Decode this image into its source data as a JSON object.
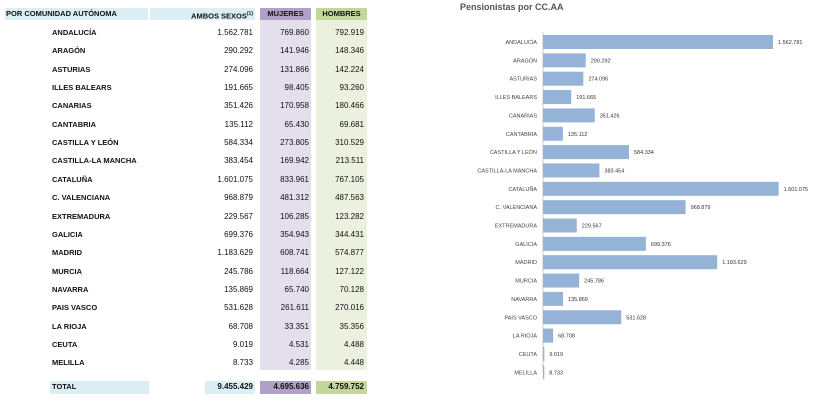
{
  "table": {
    "headers": {
      "region": "POR COMUNIDAD AUTÓNOMA",
      "both": "AMBOS SEXOS",
      "both_note": "(1)",
      "women": "MUJERES",
      "men": "HOMBRES"
    },
    "rows": [
      {
        "name": "ANDALUCÍA",
        "both": "1.562.781",
        "women": "769.860",
        "men": "792.919"
      },
      {
        "name": "ARAGÓN",
        "both": "290.292",
        "women": "141.946",
        "men": "148.346"
      },
      {
        "name": "ASTURIAS",
        "both": "274.096",
        "women": "131.866",
        "men": "142.224"
      },
      {
        "name": "ILLES BALEARS",
        "both": "191.665",
        "women": "98.405",
        "men": "93.260"
      },
      {
        "name": "CANARIAS",
        "both": "351.426",
        "women": "170.958",
        "men": "180.466"
      },
      {
        "name": "CANTABRIA",
        "both": "135.112",
        "women": "65.430",
        "men": "69.681"
      },
      {
        "name": "CASTILLA Y LEÓN",
        "both": "584.334",
        "women": "273.805",
        "men": "310.529"
      },
      {
        "name": "CASTILLA-LA MANCHA",
        "both": "383.454",
        "women": "169.942",
        "men": "213.511"
      },
      {
        "name": "CATALUÑA",
        "both": "1.601.075",
        "women": "833.961",
        "men": "767.105"
      },
      {
        "name": "C. VALENCIANA",
        "both": "968.879",
        "women": "481.312",
        "men": "487.563"
      },
      {
        "name": "EXTREMADURA",
        "both": "229.567",
        "women": "106.285",
        "men": "123.282"
      },
      {
        "name": "GALICIA",
        "both": "699.376",
        "women": "354.943",
        "men": "344.431"
      },
      {
        "name": "MADRID",
        "both": "1.183.629",
        "women": "608.741",
        "men": "574.877"
      },
      {
        "name": "MURCIA",
        "both": "245.786",
        "women": "118.664",
        "men": "127.122"
      },
      {
        "name": "NAVARRA",
        "both": "135.869",
        "women": "65.740",
        "men": "70.128"
      },
      {
        "name": "PAIS VASCO",
        "both": "531.628",
        "women": "261.611",
        "men": "270.016"
      },
      {
        "name": "LA RIOJA",
        "both": "68.708",
        "women": "33.351",
        "men": "35.356"
      },
      {
        "name": "CEUTA",
        "both": "9.019",
        "women": "4.531",
        "men": "4.488"
      },
      {
        "name": "MELILLA",
        "both": "8.733",
        "women": "4.285",
        "men": "4.448"
      }
    ],
    "total": {
      "name": "TOTAL",
      "both": "9.455.429",
      "women": "4.695.636",
      "men": "4.759.752"
    }
  },
  "colors": {
    "header_blue": "#dbeef4",
    "women": "#e4dfec",
    "women_header": "#b1a0c7",
    "men": "#ebf1de",
    "men_header": "#c4d79b",
    "bar": "#95b3d7"
  },
  "chart_data": {
    "type": "bar",
    "orientation": "horizontal",
    "title": "Pensionistas por CC.AA",
    "categories": [
      "ANDALUCÍA",
      "ARAGÓN",
      "ASTURIAS",
      "ILLES BALEARS",
      "CANARIAS",
      "CANTABRIA",
      "CASTILLA Y LEÓN",
      "CASTILLA-LA MANCHA",
      "CATALUÑA",
      "C. VALENCIANA",
      "EXTREMADURA",
      "GALICIA",
      "MADRID",
      "MURCIA",
      "NAVARRA",
      "PAIS VASCO",
      "LA RIOJA",
      "CEUTA",
      "MELILLA"
    ],
    "values": [
      1562781,
      290292,
      274096,
      191665,
      351426,
      135112,
      584334,
      383454,
      1601075,
      968879,
      229567,
      699376,
      1183629,
      245786,
      135869,
      531628,
      68708,
      9019,
      8733
    ],
    "labels": [
      "1.562.781",
      "290.292",
      "274.096",
      "191.665",
      "351.426",
      "135.112",
      "584.334",
      "383.454",
      "1.601.075",
      "968.879",
      "229.567",
      "699.376",
      "1.183.629",
      "245.786",
      "135.869",
      "531.628",
      "68.708",
      "9.019",
      "8.733"
    ],
    "grid": false,
    "legend": "none"
  }
}
